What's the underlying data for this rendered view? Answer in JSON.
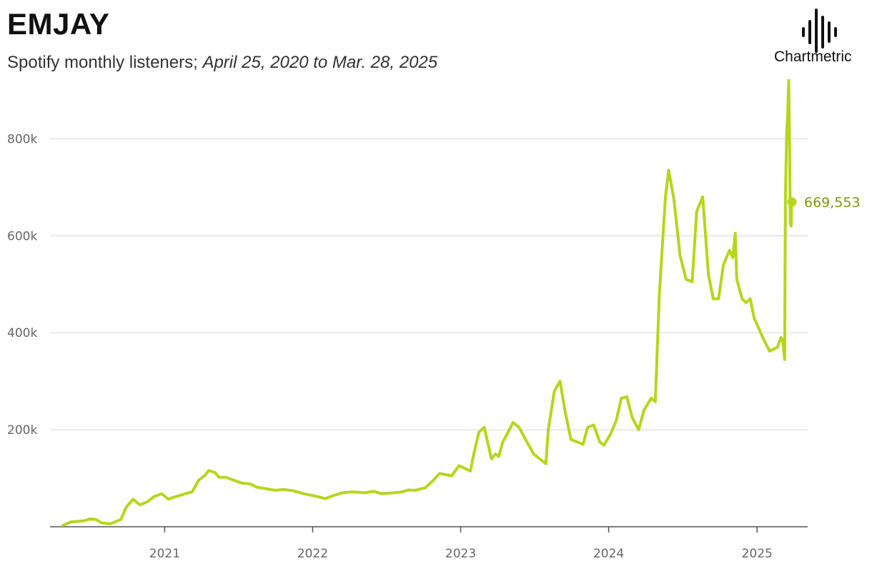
{
  "header": {
    "title": "EMJAY",
    "subtitle_metric": "Spotify monthly listeners;",
    "subtitle_range": "April 25, 2020 to Mar. 28, 2025"
  },
  "branding": {
    "logo_text": "Chartmetric",
    "logo_icon": "soundwave-icon"
  },
  "colors": {
    "line": "#b5d61c",
    "end_label": "#7a9a10",
    "grid": "#e3e3e3",
    "axis": "#555555"
  },
  "chart_data": {
    "type": "line",
    "title": "EMJAY",
    "subtitle": "Spotify monthly listeners; April 25, 2020 to Mar. 28, 2025",
    "xlabel": "",
    "ylabel": "",
    "ylim": [
      0,
      880000
    ],
    "yticks": [
      200000,
      400000,
      600000,
      800000
    ],
    "ytick_labels": [
      "200k",
      "400k",
      "600k",
      "800k"
    ],
    "xlim": [
      "2020-04-25",
      "2025-03-28"
    ],
    "xticks": [
      "2021-01-01",
      "2022-01-01",
      "2023-01-01",
      "2024-01-01",
      "2025-01-01"
    ],
    "xtick_labels": [
      "2021",
      "2022",
      "2023",
      "2024",
      "2025"
    ],
    "grid": true,
    "end_value_label": "669,553",
    "series": [
      {
        "points": [
          [
            "2020-04-25",
            3000
          ],
          [
            "2020-05-15",
            10000
          ],
          [
            "2020-06-15",
            12000
          ],
          [
            "2020-07-01",
            16000
          ],
          [
            "2020-07-15",
            15000
          ],
          [
            "2020-07-30",
            8000
          ],
          [
            "2020-08-20",
            6000
          ],
          [
            "2020-09-15",
            15000
          ],
          [
            "2020-09-28",
            40000
          ],
          [
            "2020-10-15",
            57000
          ],
          [
            "2020-11-01",
            45000
          ],
          [
            "2020-11-20",
            52000
          ],
          [
            "2020-12-05",
            62000
          ],
          [
            "2020-12-25",
            68000
          ],
          [
            "2021-01-10",
            57000
          ],
          [
            "2021-01-28",
            62000
          ],
          [
            "2021-02-20",
            68000
          ],
          [
            "2021-03-10",
            72000
          ],
          [
            "2021-03-25",
            95000
          ],
          [
            "2021-04-10",
            106000
          ],
          [
            "2021-04-20",
            116000
          ],
          [
            "2021-05-05",
            112000
          ],
          [
            "2021-05-15",
            102000
          ],
          [
            "2021-06-01",
            102000
          ],
          [
            "2021-06-20",
            96000
          ],
          [
            "2021-07-10",
            90000
          ],
          [
            "2021-08-01",
            88000
          ],
          [
            "2021-08-15",
            82000
          ],
          [
            "2021-09-10",
            78000
          ],
          [
            "2021-10-01",
            75000
          ],
          [
            "2021-10-20",
            77000
          ],
          [
            "2021-11-15",
            74000
          ],
          [
            "2021-12-10",
            68000
          ],
          [
            "2022-01-15",
            62000
          ],
          [
            "2022-02-01",
            58000
          ],
          [
            "2022-02-20",
            64000
          ],
          [
            "2022-03-15",
            70000
          ],
          [
            "2022-04-10",
            72000
          ],
          [
            "2022-05-10",
            70000
          ],
          [
            "2022-06-01",
            73000
          ],
          [
            "2022-06-20",
            68000
          ],
          [
            "2022-07-20",
            70000
          ],
          [
            "2022-08-10",
            72000
          ],
          [
            "2022-08-25",
            76000
          ],
          [
            "2022-09-10",
            75000
          ],
          [
            "2022-10-05",
            80000
          ],
          [
            "2022-10-25",
            95000
          ],
          [
            "2022-11-10",
            110000
          ],
          [
            "2022-12-10",
            105000
          ],
          [
            "2022-12-28",
            126000
          ],
          [
            "2023-01-25",
            115000
          ],
          [
            "2023-02-01",
            145000
          ],
          [
            "2023-02-15",
            195000
          ],
          [
            "2023-02-28",
            205000
          ],
          [
            "2023-03-18",
            140000
          ],
          [
            "2023-03-28",
            150000
          ],
          [
            "2023-04-05",
            145000
          ],
          [
            "2023-04-15",
            175000
          ],
          [
            "2023-04-25",
            190000
          ],
          [
            "2023-05-10",
            215000
          ],
          [
            "2023-05-25",
            205000
          ],
          [
            "2023-06-10",
            180000
          ],
          [
            "2023-06-30",
            150000
          ],
          [
            "2023-07-15",
            140000
          ],
          [
            "2023-07-30",
            130000
          ],
          [
            "2023-08-05",
            200000
          ],
          [
            "2023-08-20",
            280000
          ],
          [
            "2023-09-03",
            300000
          ],
          [
            "2023-09-15",
            240000
          ],
          [
            "2023-09-30",
            180000
          ],
          [
            "2023-10-15",
            175000
          ],
          [
            "2023-10-30",
            170000
          ],
          [
            "2023-11-10",
            205000
          ],
          [
            "2023-11-25",
            210000
          ],
          [
            "2023-12-10",
            175000
          ],
          [
            "2023-12-20",
            168000
          ],
          [
            "2024-01-05",
            190000
          ],
          [
            "2024-01-20",
            220000
          ],
          [
            "2024-02-01",
            265000
          ],
          [
            "2024-02-15",
            268000
          ],
          [
            "2024-02-28",
            225000
          ],
          [
            "2024-03-15",
            200000
          ],
          [
            "2024-03-28",
            240000
          ],
          [
            "2024-04-15",
            265000
          ],
          [
            "2024-04-25",
            258000
          ],
          [
            "2024-05-05",
            480000
          ],
          [
            "2024-05-20",
            680000
          ],
          [
            "2024-05-28",
            735000
          ],
          [
            "2024-06-10",
            675000
          ],
          [
            "2024-06-25",
            560000
          ],
          [
            "2024-07-10",
            510000
          ],
          [
            "2024-07-25",
            505000
          ],
          [
            "2024-08-05",
            650000
          ],
          [
            "2024-08-20",
            680000
          ],
          [
            "2024-09-03",
            520000
          ],
          [
            "2024-09-15",
            470000
          ],
          [
            "2024-09-28",
            470000
          ],
          [
            "2024-10-10",
            540000
          ],
          [
            "2024-10-25",
            570000
          ],
          [
            "2024-11-02",
            555000
          ],
          [
            "2024-11-08",
            605000
          ],
          [
            "2024-11-12",
            510000
          ],
          [
            "2024-11-25",
            470000
          ],
          [
            "2024-12-05",
            462000
          ],
          [
            "2024-12-15",
            470000
          ],
          [
            "2024-12-25",
            430000
          ],
          [
            "2025-01-15",
            390000
          ],
          [
            "2025-02-01",
            362000
          ],
          [
            "2025-02-20",
            370000
          ],
          [
            "2025-03-01",
            390000
          ],
          [
            "2025-03-05",
            385000
          ],
          [
            "2025-03-08",
            360000
          ],
          [
            "2025-03-10",
            345000
          ],
          [
            "2025-03-12",
            680000
          ],
          [
            "2025-03-15",
            810000
          ],
          [
            "2025-03-18",
            860000
          ],
          [
            "2025-03-20",
            920000
          ],
          [
            "2025-03-22",
            800000
          ],
          [
            "2025-03-24",
            625000
          ],
          [
            "2025-03-26",
            620000
          ],
          [
            "2025-03-27",
            660000
          ],
          [
            "2025-03-28",
            669553
          ]
        ]
      }
    ]
  }
}
